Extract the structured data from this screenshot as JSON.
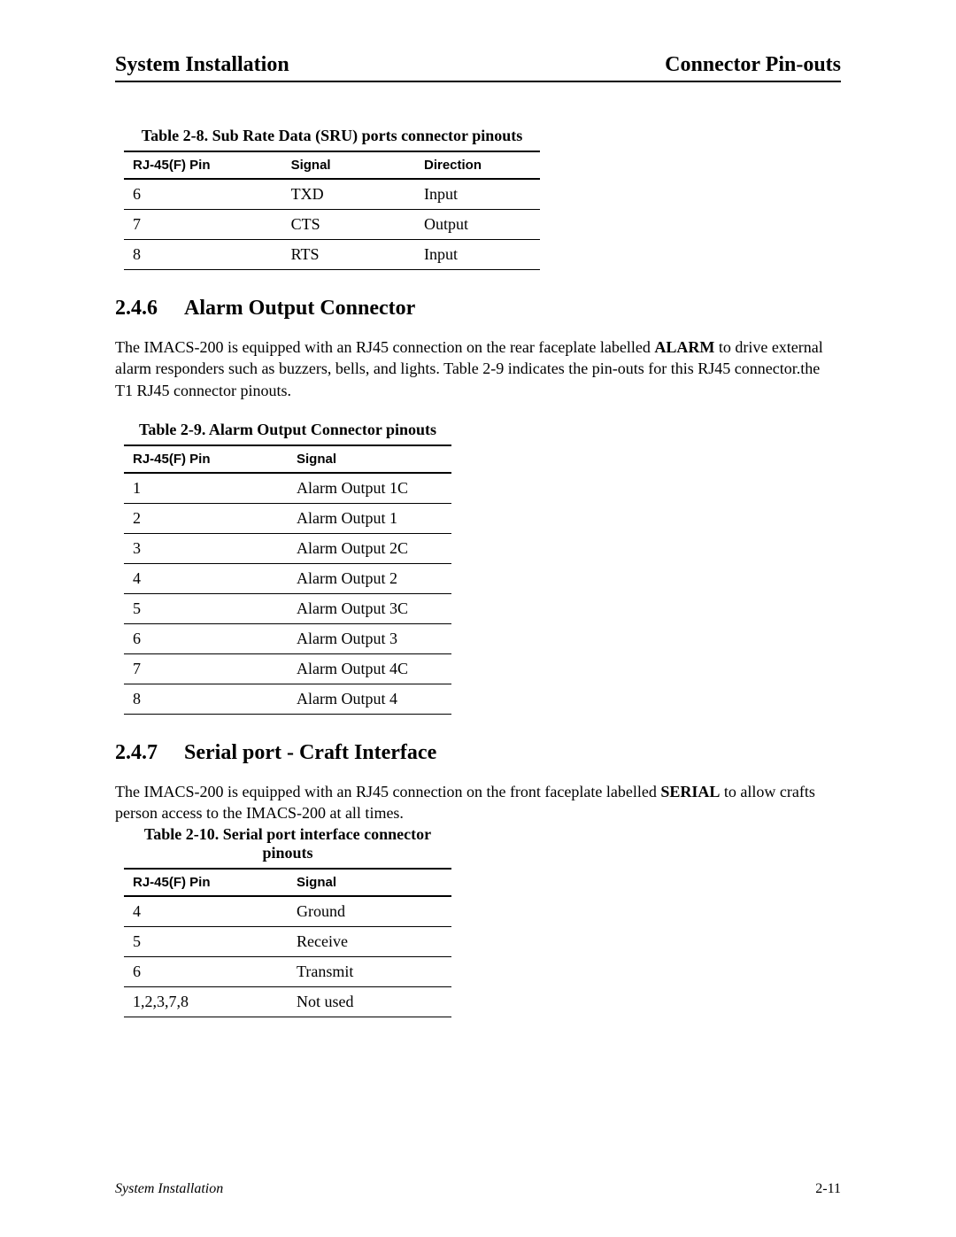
{
  "header": {
    "left": "System Installation",
    "right": "Connector Pin-outs"
  },
  "table1": {
    "caption": "Table 2-8. Sub Rate Data (SRU) ports connector pinouts",
    "columns": [
      "RJ-45(F) Pin",
      "Signal",
      "Direction"
    ],
    "col_widths": [
      "38%",
      "32%",
      "30%"
    ],
    "rows": [
      [
        "6",
        "TXD",
        "Input"
      ],
      [
        "7",
        "CTS",
        "Output"
      ],
      [
        "8",
        "RTS",
        "Input"
      ]
    ]
  },
  "section1": {
    "number": "2.4.6",
    "title": "Alarm Output Connector",
    "paragraph_pre": "The IMACS-200 is equipped with an RJ45 connection on the rear faceplate labelled ",
    "paragraph_bold": "ALARM",
    "paragraph_post": " to drive external alarm responders such as buzzers, bells, and lights. Table 2-9 indicates the pin-outs for this RJ45 connector.the T1 RJ45 connector pinouts."
  },
  "table2": {
    "caption": "Table 2-9. Alarm Output Connector pinouts",
    "columns": [
      "RJ-45(F) Pin",
      "Signal"
    ],
    "col_widths": [
      "50%",
      "50%"
    ],
    "rows": [
      [
        "1",
        "Alarm Output 1C"
      ],
      [
        "2",
        "Alarm Output 1"
      ],
      [
        "3",
        "Alarm Output 2C"
      ],
      [
        "4",
        "Alarm Output 2"
      ],
      [
        "5",
        "Alarm Output 3C"
      ],
      [
        "6",
        "Alarm Output 3"
      ],
      [
        "7",
        "Alarm Output 4C"
      ],
      [
        "8",
        "Alarm Output 4"
      ]
    ]
  },
  "section2": {
    "number": "2.4.7",
    "title": "Serial port - Craft Interface",
    "paragraph_pre": "The IMACS-200 is equipped with an RJ45 connection on the front faceplate labelled ",
    "paragraph_bold": "SERIAL",
    "paragraph_post": " to allow crafts person access to the IMACS-200 at all times."
  },
  "table3": {
    "caption": "Table 2-10. Serial port interface connector pinouts",
    "columns": [
      "RJ-45(F) Pin",
      "Signal"
    ],
    "col_widths": [
      "50%",
      "50%"
    ],
    "rows": [
      [
        "4",
        "Ground"
      ],
      [
        "5",
        "Receive"
      ],
      [
        "6",
        "Transmit"
      ],
      [
        "1,2,3,7,8",
        "Not used"
      ]
    ]
  },
  "footer": {
    "left": "System Installation",
    "right": "2-11"
  }
}
